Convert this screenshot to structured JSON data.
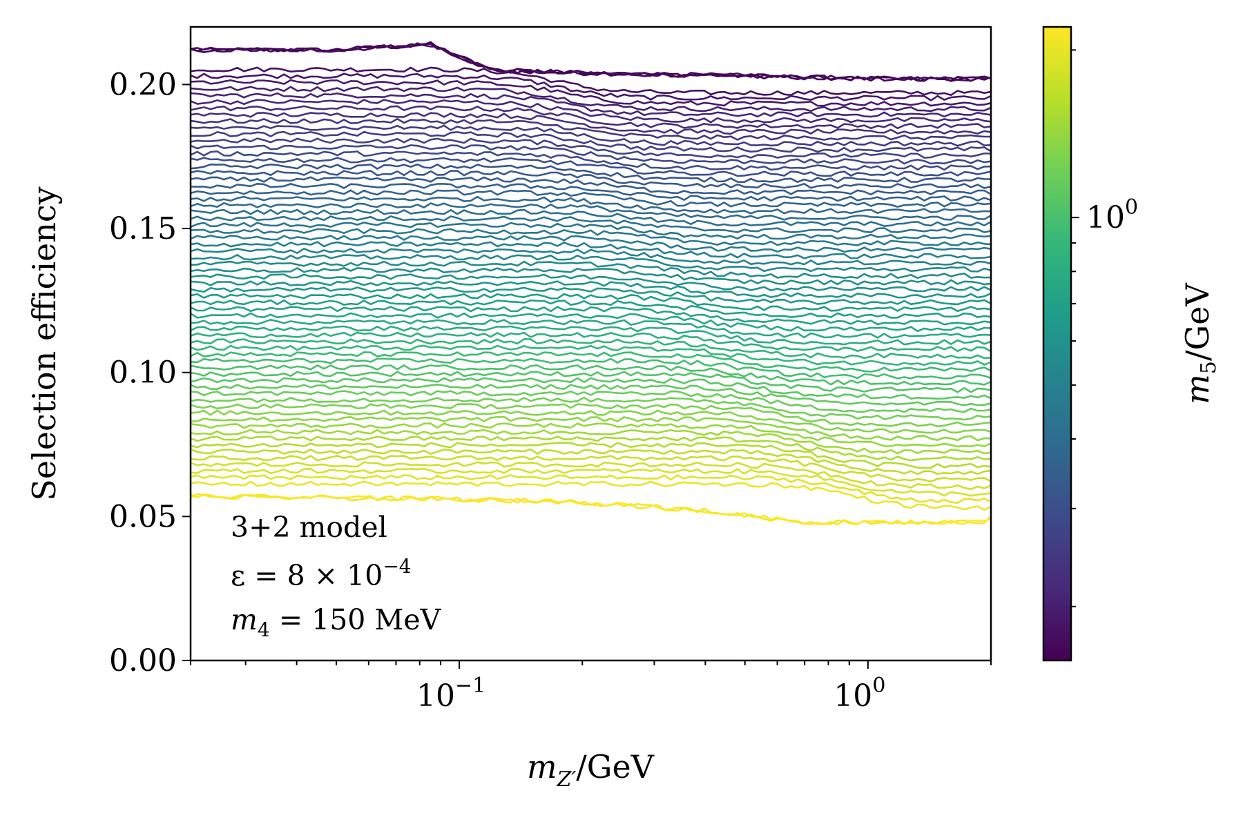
{
  "chart_data": {
    "type": "line",
    "title": "",
    "xlabel": "m_Z'/GeV",
    "ylabel": "Selection efficiency",
    "xscale": "log",
    "xlim": [
      0.022,
      2.0
    ],
    "ylim": [
      0.0,
      0.22
    ],
    "grid": false,
    "x_ticks": [
      {
        "value": 0.1,
        "label": "10",
        "exp": "−1"
      },
      {
        "value": 1.0,
        "label": "10",
        "exp": "0"
      }
    ],
    "y_ticks": [
      {
        "value": 0.0,
        "label": "0.00"
      },
      {
        "value": 0.05,
        "label": "0.05"
      },
      {
        "value": 0.1,
        "label": "0.10"
      },
      {
        "value": 0.15,
        "label": "0.15"
      },
      {
        "value": 0.2,
        "label": "0.20"
      }
    ],
    "series_family": {
      "description": "one curve per m5 value; curves coloured by m5 (viridis colormap)",
      "count": 70,
      "m5_range_GeV": [
        0.16,
        2.2
      ],
      "lowest_m5_curve": {
        "x": [
          0.022,
          0.05,
          0.085,
          0.12,
          0.2,
          0.5,
          1.0,
          1.5,
          2.0
        ],
        "y": [
          0.212,
          0.212,
          0.214,
          0.205,
          0.204,
          0.203,
          0.202,
          0.202,
          0.202
        ]
      },
      "highest_m5_curve": {
        "x": [
          0.022,
          0.1,
          0.2,
          0.4,
          0.6,
          0.7,
          1.0,
          1.9,
          2.0
        ],
        "y": [
          0.057,
          0.056,
          0.055,
          0.052,
          0.049,
          0.048,
          0.048,
          0.048,
          0.05
        ]
      },
      "transition": "curves drop from their plateau to the lower band where m_Z' ≈ 2·m4 ... m5"
    },
    "colorbar": {
      "label": "m_5/GeV",
      "scale": "log",
      "colormap": "viridis",
      "range": [
        0.16,
        2.2
      ],
      "ticks": [
        {
          "value": 1.0,
          "label": "10",
          "exp": "0"
        }
      ]
    },
    "annotations": [
      "3+2 model",
      "ε = 8 × 10",
      "−4",
      "m",
      "4",
      " = 150 MeV"
    ],
    "colors": [
      "#440154",
      "#482878",
      "#3e4989",
      "#31688e",
      "#26828e",
      "#1f9e89",
      "#35b779",
      "#6ece58",
      "#b5de2b",
      "#fde725"
    ]
  }
}
